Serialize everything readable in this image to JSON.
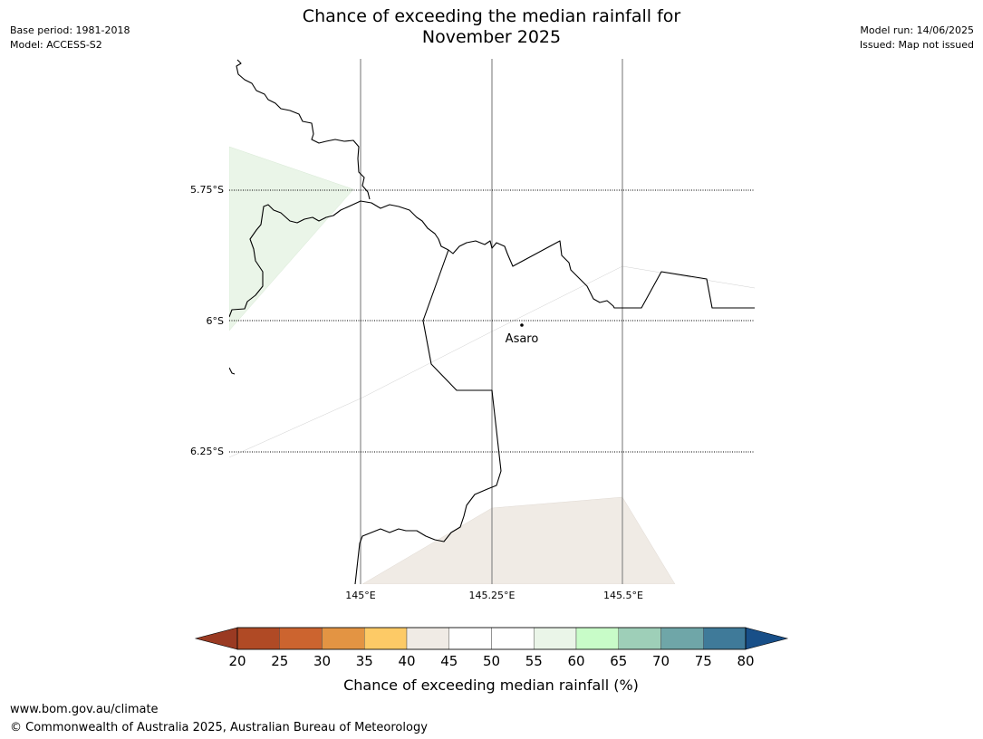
{
  "header": {
    "base_period": "Base period: 1981-2018",
    "model": "Model: ACCESS-S2",
    "title_line1": "Chance of exceeding the median rainfall for",
    "title_line2": "November 2025",
    "model_run": "Model run: 14/06/2025",
    "issued": "Issued: Map not issued"
  },
  "map": {
    "lat_labels": [
      "5.75°S",
      "6°S",
      "6.25°S"
    ],
    "lon_labels": [
      "145°E",
      "145.25°E",
      "145.5°E"
    ],
    "place": {
      "name": "Asaro",
      "lon": 145.3,
      "lat": -6.01
    }
  },
  "legend": {
    "title": "Chance of exceeding median rainfall (%)",
    "ticks": [
      "20",
      "25",
      "30",
      "35",
      "40",
      "45",
      "50",
      "55",
      "60",
      "65",
      "70",
      "75",
      "80"
    ],
    "colors": [
      "#9a3a22",
      "#b04a25",
      "#cc642f",
      "#e39443",
      "#fdca66",
      "#f0ebe5",
      "#ffffff",
      "#ffffff",
      "#eaf5e8",
      "#c8fcc8",
      "#9ecfb8",
      "#6fa6a8",
      "#3f7a99",
      "#184f88"
    ]
  },
  "footer": {
    "url": "www.bom.gov.au/climate",
    "copyright": "© Commonwealth of Australia 2025, Australian Bureau of Meteorology"
  }
}
